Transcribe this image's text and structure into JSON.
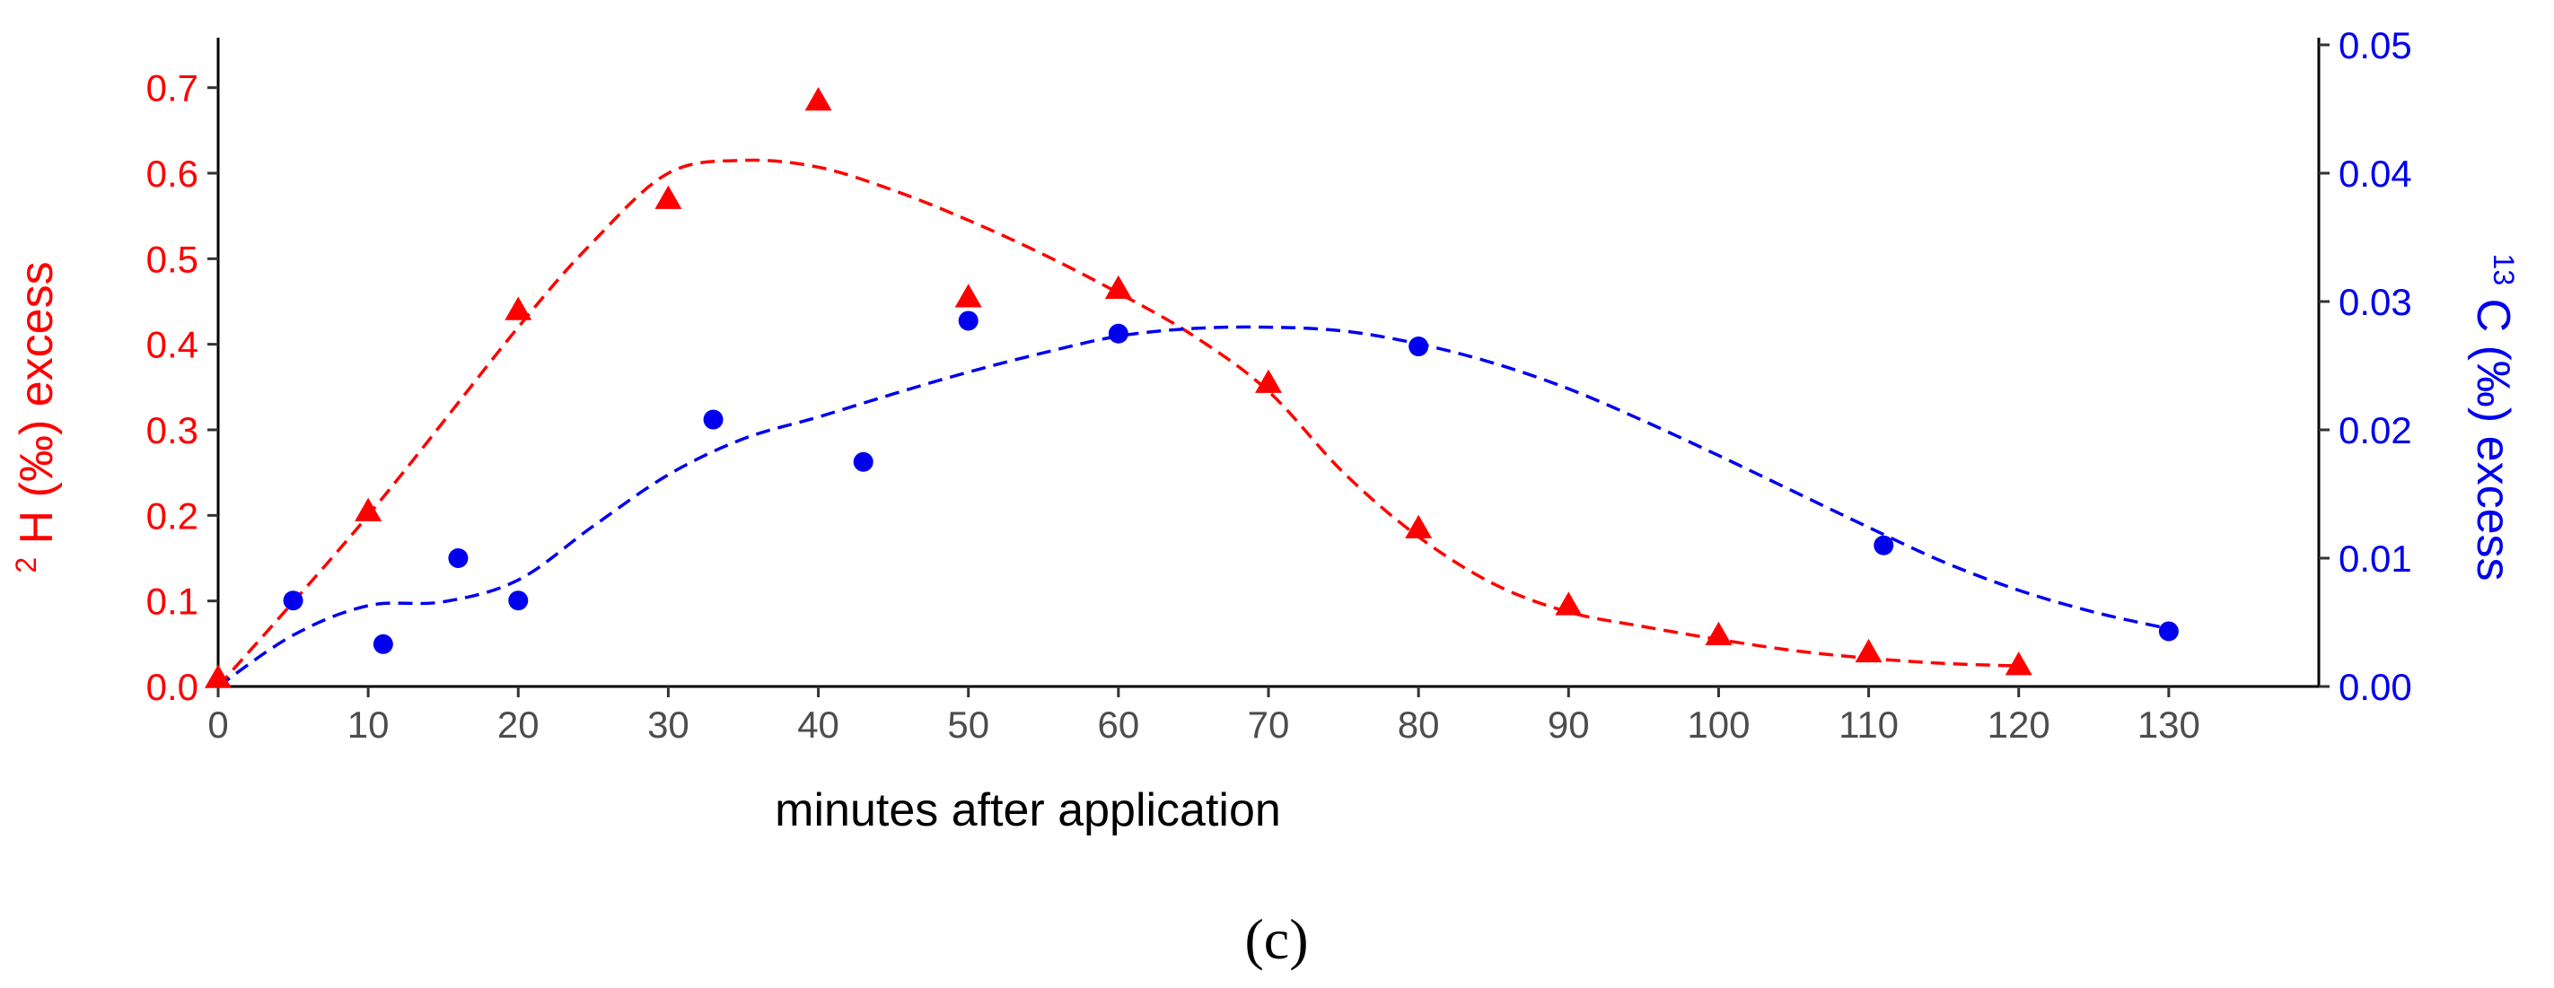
{
  "chart_data": {
    "type": "scatter",
    "panel_label": "(c)",
    "xlabel": "minutes after application",
    "xlim": [
      0,
      140
    ],
    "xticks": [
      0,
      10,
      20,
      30,
      40,
      50,
      60,
      70,
      80,
      90,
      100,
      110,
      120,
      130
    ],
    "left_axis": {
      "label_sup": "2",
      "label_main": "H (‰) excess",
      "color": "#ff0000",
      "ylim": [
        0,
        0.75
      ],
      "ticks": [
        "0.0",
        "0.1",
        "0.2",
        "0.3",
        "0.4",
        "0.5",
        "0.6",
        "0.7"
      ]
    },
    "right_axis": {
      "label_sup": "13",
      "label_main": "C (‰) excess",
      "color": "#0000ee",
      "ylim": [
        0,
        0.05
      ],
      "ticks": [
        "0.00",
        "0.01",
        "0.02",
        "0.03",
        "0.04",
        "0.05"
      ]
    },
    "series": [
      {
        "name": "2H excess",
        "axis": "left",
        "marker": "triangle",
        "color": "#ff0000",
        "points": [
          [
            0,
            0.01
          ],
          [
            10,
            0.205
          ],
          [
            20,
            0.44
          ],
          [
            30,
            0.57
          ],
          [
            40,
            0.685
          ],
          [
            50,
            0.455
          ],
          [
            60,
            0.465
          ],
          [
            70,
            0.355
          ],
          [
            80,
            0.185
          ],
          [
            90,
            0.095
          ],
          [
            100,
            0.06
          ],
          [
            110,
            0.04
          ],
          [
            120,
            0.025
          ]
        ],
        "trend": [
          [
            0,
            0.0
          ],
          [
            10,
            0.2
          ],
          [
            20,
            0.42
          ],
          [
            25,
            0.52
          ],
          [
            30,
            0.6
          ],
          [
            35,
            0.615
          ],
          [
            40,
            0.607
          ],
          [
            45,
            0.58
          ],
          [
            50,
            0.545
          ],
          [
            55,
            0.505
          ],
          [
            60,
            0.46
          ],
          [
            65,
            0.41
          ],
          [
            70,
            0.345
          ],
          [
            75,
            0.25
          ],
          [
            80,
            0.175
          ],
          [
            85,
            0.12
          ],
          [
            90,
            0.087
          ],
          [
            95,
            0.07
          ],
          [
            100,
            0.055
          ],
          [
            105,
            0.042
          ],
          [
            110,
            0.033
          ],
          [
            115,
            0.027
          ],
          [
            120,
            0.024
          ]
        ]
      },
      {
        "name": "13C excess",
        "axis": "right",
        "marker": "circle",
        "color": "#0000ee",
        "points": [
          [
            5,
            0.0067
          ],
          [
            11,
            0.0033
          ],
          [
            16,
            0.01
          ],
          [
            20,
            0.0067
          ],
          [
            33,
            0.0208
          ],
          [
            43,
            0.0175
          ],
          [
            50,
            0.0285
          ],
          [
            60,
            0.0275
          ],
          [
            80,
            0.0265
          ],
          [
            111,
            0.011
          ],
          [
            130,
            0.0043
          ]
        ],
        "trend": [
          [
            0,
            0.0
          ],
          [
            5,
            0.004
          ],
          [
            10,
            0.0063
          ],
          [
            15,
            0.0066
          ],
          [
            20,
            0.0083
          ],
          [
            25,
            0.0125
          ],
          [
            30,
            0.0165
          ],
          [
            35,
            0.0193
          ],
          [
            40,
            0.021
          ],
          [
            45,
            0.0228
          ],
          [
            50,
            0.0245
          ],
          [
            55,
            0.026
          ],
          [
            60,
            0.0273
          ],
          [
            65,
            0.0279
          ],
          [
            70,
            0.028
          ],
          [
            75,
            0.0277
          ],
          [
            80,
            0.0267
          ],
          [
            85,
            0.0252
          ],
          [
            90,
            0.0232
          ],
          [
            95,
            0.0207
          ],
          [
            100,
            0.018
          ],
          [
            105,
            0.0152
          ],
          [
            110,
            0.0124
          ],
          [
            115,
            0.0097
          ],
          [
            120,
            0.0075
          ],
          [
            125,
            0.0058
          ],
          [
            130,
            0.0045
          ]
        ]
      }
    ]
  }
}
